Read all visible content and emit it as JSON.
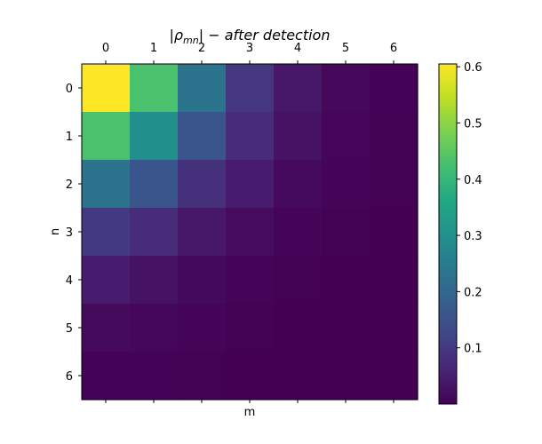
{
  "chart_data": {
    "type": "heatmap",
    "title": {
      "main": "ρ",
      "sub": "mn",
      "rest": " − after detection"
    },
    "xlabel": "m",
    "ylabel": "n",
    "x_ticks": [
      "0",
      "1",
      "2",
      "3",
      "4",
      "5",
      "6"
    ],
    "y_ticks": [
      "0",
      "1",
      "2",
      "3",
      "4",
      "5",
      "6"
    ],
    "x_tick_position": "top",
    "values": [
      [
        0.605,
        0.43,
        0.23,
        0.095,
        0.04,
        0.012,
        0.003
      ],
      [
        0.43,
        0.3,
        0.16,
        0.075,
        0.03,
        0.009,
        0.002
      ],
      [
        0.23,
        0.16,
        0.085,
        0.045,
        0.016,
        0.005,
        0.001
      ],
      [
        0.1,
        0.075,
        0.04,
        0.018,
        0.007,
        0.002,
        0.0
      ],
      [
        0.045,
        0.03,
        0.014,
        0.006,
        0.002,
        0.0,
        0.0
      ],
      [
        0.015,
        0.01,
        0.005,
        0.002,
        0.0,
        0.0,
        0.0
      ],
      [
        0.004,
        0.003,
        0.001,
        0.0,
        0.0,
        0.0,
        0.0
      ]
    ],
    "color_range": [
      0.0,
      0.605
    ],
    "colormap": "viridis",
    "colorbar": {
      "ticks": [
        "0.1",
        "0.2",
        "0.3",
        "0.4",
        "0.5",
        "0.6"
      ],
      "tick_values": [
        0.1,
        0.2,
        0.3,
        0.4,
        0.5,
        0.6
      ]
    },
    "grid": false
  }
}
